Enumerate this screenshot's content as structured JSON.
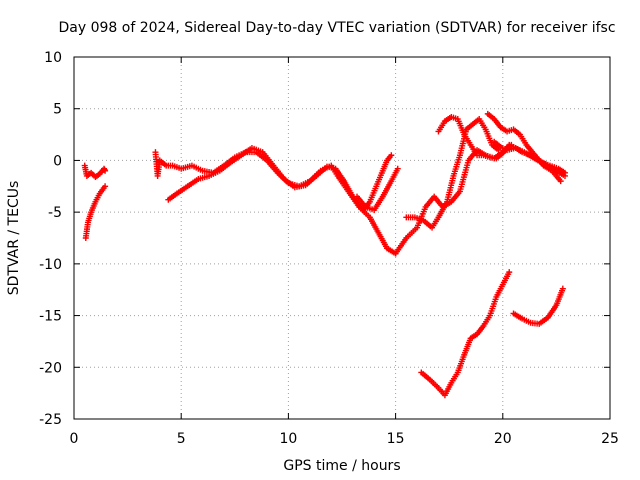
{
  "chart_data": {
    "type": "scatter",
    "title": "Day 098 of 2024, Sidereal Day-to-day VTEC variation (SDTVAR) for receiver ifsc",
    "xlabel": "GPS time / hours",
    "ylabel": "SDTVAR / TECUs",
    "xlim": [
      0,
      25
    ],
    "ylim": [
      -25,
      10
    ],
    "xticks": [
      0,
      5,
      10,
      15,
      20,
      25
    ],
    "yticks": [
      -25,
      -20,
      -15,
      -10,
      -5,
      0,
      5,
      10
    ],
    "grid": true,
    "marker": "plus",
    "color": "#ff0000",
    "series": [
      {
        "name": "s1",
        "x": [
          0.5,
          0.6,
          0.8,
          1.0,
          1.2,
          1.4,
          1.45
        ],
        "y": [
          -0.5,
          -1.5,
          -1.2,
          -1.6,
          -1.3,
          -0.8,
          -1.0
        ]
      },
      {
        "name": "s2",
        "x": [
          0.55,
          0.65,
          0.8,
          1.0,
          1.2,
          1.45
        ],
        "y": [
          -7.5,
          -6.0,
          -5.0,
          -4.0,
          -3.2,
          -2.5
        ]
      },
      {
        "name": "s3",
        "x": [
          3.8,
          3.9,
          4.0,
          4.3,
          4.6,
          5.0,
          5.5,
          6.0,
          6.5,
          7.0,
          7.5,
          8.0,
          8.5,
          9.0,
          9.5,
          10.0,
          10.5,
          11.0,
          11.5,
          12.0,
          12.3,
          12.8,
          13.3,
          13.8,
          14.2,
          14.6,
          15.0
        ],
        "y": [
          0.8,
          -1.5,
          0.0,
          -0.5,
          -0.5,
          -0.8,
          -0.5,
          -1.0,
          -1.2,
          -0.5,
          0.3,
          0.8,
          0.8,
          0.0,
          -1.2,
          -2.2,
          -2.5,
          -2.0,
          -1.0,
          -0.5,
          -1.5,
          -3.0,
          -4.5,
          -5.5,
          -7.0,
          -8.5,
          -9.0
        ]
      },
      {
        "name": "s4",
        "x": [
          4.4,
          4.8,
          5.3,
          5.8,
          6.3,
          6.8,
          7.3,
          7.8,
          8.3,
          8.8,
          9.3,
          9.8,
          10.3,
          10.8,
          11.3,
          11.8,
          12.2,
          12.6,
          13.0,
          13.5
        ],
        "y": [
          -3.8,
          -3.2,
          -2.5,
          -1.8,
          -1.5,
          -1.0,
          -0.2,
          0.5,
          1.2,
          0.8,
          -0.5,
          -1.8,
          -2.6,
          -2.4,
          -1.5,
          -0.6,
          -0.8,
          -2.0,
          -3.5,
          -4.8
        ]
      },
      {
        "name": "s5",
        "x": [
          13.2,
          13.6,
          14.0,
          14.4,
          14.8,
          15.1
        ],
        "y": [
          -3.5,
          -4.5,
          -4.8,
          -3.5,
          -2.0,
          -0.8
        ]
      },
      {
        "name": "s6",
        "x": [
          13.5,
          13.8,
          14.1,
          14.4,
          14.6,
          14.8
        ],
        "y": [
          -4.8,
          -4.0,
          -2.5,
          -1.0,
          0.0,
          0.5
        ]
      },
      {
        "name": "s7",
        "x": [
          15.0,
          15.5,
          16.0,
          16.4,
          16.8,
          17.2,
          17.6,
          18.0,
          18.4,
          18.8,
          19.2,
          19.6,
          20.0,
          20.4
        ],
        "y": [
          -9.0,
          -7.5,
          -6.5,
          -4.5,
          -3.5,
          -4.5,
          -4.0,
          -3.0,
          0.0,
          1.0,
          0.5,
          0.2,
          0.8,
          1.5
        ]
      },
      {
        "name": "s8",
        "x": [
          15.5,
          15.9,
          16.3,
          16.7,
          17.0,
          17.4,
          17.7,
          18.0,
          18.3,
          18.6,
          18.9,
          19.2,
          19.5,
          19.8
        ],
        "y": [
          -5.5,
          -5.5,
          -5.8,
          -6.5,
          -5.5,
          -4.0,
          -1.5,
          0.5,
          3.0,
          3.5,
          4.0,
          3.0,
          1.5,
          1.0
        ]
      },
      {
        "name": "s9",
        "x": [
          17.0,
          17.3,
          17.6,
          17.9,
          18.2,
          18.5,
          18.8,
          19.1,
          19.4,
          19.7,
          20.0,
          20.3,
          20.6,
          20.9,
          21.3,
          21.7,
          22.1,
          22.5,
          22.9
        ],
        "y": [
          2.8,
          3.8,
          4.2,
          4.0,
          2.5,
          1.5,
          0.5,
          0.5,
          0.3,
          0.2,
          0.7,
          1.5,
          1.2,
          0.8,
          0.5,
          0.0,
          -0.5,
          -1.0,
          -1.5
        ]
      },
      {
        "name": "s10",
        "x": [
          19.3,
          19.6,
          19.9,
          20.2,
          20.5,
          20.8,
          21.1,
          21.5,
          21.9,
          22.3,
          22.7
        ],
        "y": [
          4.5,
          4.0,
          3.2,
          2.8,
          3.0,
          2.5,
          1.5,
          0.5,
          -0.5,
          -1.0,
          -2.0
        ]
      },
      {
        "name": "s11",
        "x": [
          19.6,
          19.9,
          20.2,
          20.6,
          21.0,
          21.4,
          21.8,
          22.2,
          22.6,
          22.9
        ],
        "y": [
          1.8,
          1.3,
          1.0,
          1.2,
          0.8,
          0.3,
          -0.2,
          -0.5,
          -0.8,
          -1.2
        ]
      },
      {
        "name": "s12",
        "x": [
          16.2,
          16.6,
          17.0,
          17.3,
          17.6,
          17.9,
          18.2,
          18.5,
          18.8,
          19.1,
          19.4,
          19.7,
          20.0,
          20.3
        ],
        "y": [
          -20.5,
          -21.2,
          -22.0,
          -22.7,
          -21.5,
          -20.5,
          -18.8,
          -17.2,
          -16.8,
          -16.0,
          -15.0,
          -13.2,
          -12.0,
          -10.8
        ]
      },
      {
        "name": "s13",
        "x": [
          20.5,
          20.9,
          21.3,
          21.7,
          22.1,
          22.5,
          22.8
        ],
        "y": [
          -14.8,
          -15.3,
          -15.7,
          -15.8,
          -15.2,
          -14.0,
          -12.4
        ]
      }
    ]
  }
}
